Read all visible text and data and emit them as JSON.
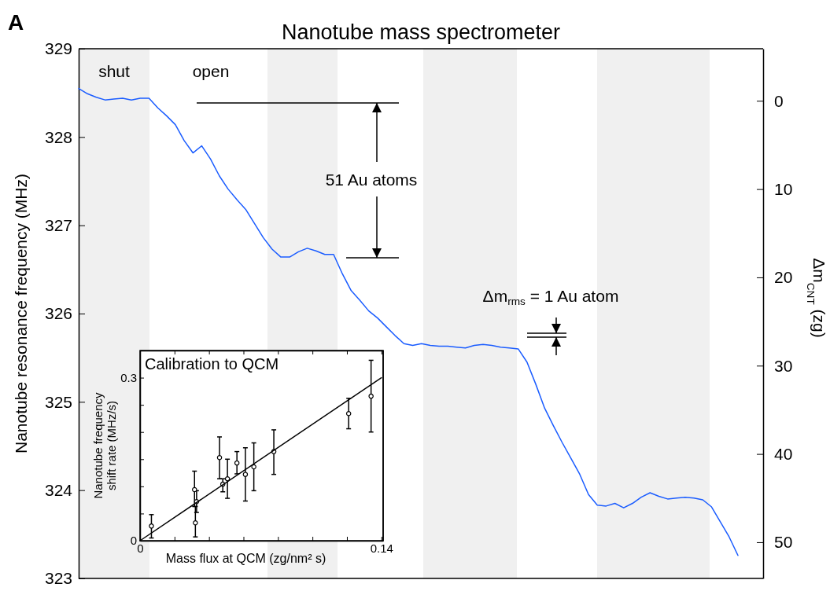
{
  "chart_data": [
    {
      "type": "line",
      "title": "Nanotube mass spectrometer",
      "ylabel": "Nanotube resonance frequency (MHz)",
      "y2label": "Δm$_{CNT}$ (zg)",
      "categories": [
        null,
        null,
        null,
        null,
        null,
        null,
        null,
        null,
        null,
        null,
        null,
        null,
        null,
        null,
        null,
        null,
        null,
        null,
        null,
        null,
        null,
        null,
        null,
        null,
        null,
        null,
        null,
        null,
        null,
        null,
        null,
        null,
        null,
        null,
        null,
        null,
        null,
        null,
        null,
        null,
        null,
        null,
        null,
        null,
        null,
        null,
        null,
        null,
        null,
        null,
        null,
        null,
        null,
        null,
        null,
        null,
        null,
        null,
        null,
        null,
        null,
        null,
        null,
        null,
        null,
        null,
        null,
        null,
        null,
        null,
        null,
        null,
        null,
        null,
        null,
        null
      ],
      "ylim": [
        323,
        329
      ],
      "yticks": [
        323,
        324,
        325,
        326,
        327,
        328,
        329
      ],
      "y2lim": [
        54.1,
        -5.9
      ],
      "y2ticks": [
        0,
        10,
        20,
        30,
        40,
        50
      ],
      "series": [
        {
          "color": "#1a5cff",
          "values": [
            328.55,
            328.49,
            328.45,
            328.42,
            328.43,
            328.44,
            328.42,
            328.44,
            328.44,
            328.33,
            328.24,
            328.14,
            327.96,
            327.82,
            327.9,
            327.75,
            327.56,
            327.41,
            327.29,
            327.18,
            327.02,
            326.86,
            326.73,
            326.64,
            326.64,
            326.7,
            326.74,
            326.71,
            326.67,
            326.67,
            326.45,
            326.26,
            326.15,
            326.03,
            325.95,
            325.85,
            325.75,
            325.66,
            325.64,
            325.66,
            325.64,
            325.63,
            325.63,
            325.62,
            325.61,
            325.64,
            325.65,
            325.64,
            325.62,
            325.61,
            325.6,
            325.45,
            325.2,
            324.93,
            324.73,
            324.54,
            324.36,
            324.18,
            323.95,
            323.83,
            323.82,
            323.85,
            323.8,
            323.85,
            323.92,
            323.97,
            323.93,
            323.9,
            323.91,
            323.92,
            323.91,
            323.89,
            323.81,
            323.64,
            323.47,
            323.26
          ]
        }
      ],
      "annotations": [
        "A",
        "shut",
        "open",
        "51 Au atoms",
        "Δm$_{rms}$ = 1 Au atom"
      ]
    },
    {
      "type": "scatter",
      "title": "Calibration to QCM",
      "xlabel": "Mass flux at QCM (zg/nm² s)",
      "ylabel": "Nanotube frequency\nshift rate (MHz/s)",
      "xlim": [
        0,
        0.141
      ],
      "xticks": [
        0,
        {
          "value": 0.02,
          "label": null
        },
        {
          "value": 0.04,
          "label": null
        },
        {
          "value": 0.06,
          "label": null
        },
        {
          "value": 0.08,
          "label": null
        },
        {
          "value": 0.1,
          "label": null
        },
        {
          "value": 0.12,
          "label": null
        },
        0.14
      ],
      "ylim": [
        0,
        0.35
      ],
      "yticks": [
        0,
        {
          "value": 0.05,
          "label": null
        },
        {
          "value": 0.1,
          "label": null
        },
        {
          "value": 0.15,
          "label": null
        },
        {
          "value": 0.2,
          "label": null
        },
        {
          "value": 0.25,
          "label": null
        },
        0.3
      ],
      "series": [
        {
          "color": "#000000",
          "marker": "circle",
          "x": [
            0.0066,
            0.0316,
            0.0321,
            0.0328,
            0.0461,
            0.048,
            0.0507,
            0.0562,
            0.0611,
            0.066,
            0.0776,
            0.121,
            0.134
          ],
          "values": [
            0.027,
            0.094,
            0.033,
            0.072,
            0.153,
            0.104,
            0.114,
            0.143,
            0.122,
            0.136,
            0.164,
            0.234,
            0.266
          ],
          "errors": [
            [
              0.005,
              0.048
            ],
            [
              0.063,
              0.128
            ],
            [
              0.007,
              0.063
            ],
            [
              0.052,
              0.092
            ],
            [
              0.114,
              0.191
            ],
            [
              0.09,
              0.114
            ],
            [
              0.078,
              0.15
            ],
            [
              0.123,
              0.164
            ],
            [
              0.073,
              0.171
            ],
            [
              0.092,
              0.18
            ],
            [
              0.122,
              0.204
            ],
            [
              0.206,
              0.262
            ],
            [
              0.2,
              0.332
            ]
          ]
        },
        {
          "type": "line",
          "color": "#000000",
          "x": [
            0,
            0.14
          ],
          "values": [
            0,
            0.3
          ]
        }
      ]
    }
  ]
}
